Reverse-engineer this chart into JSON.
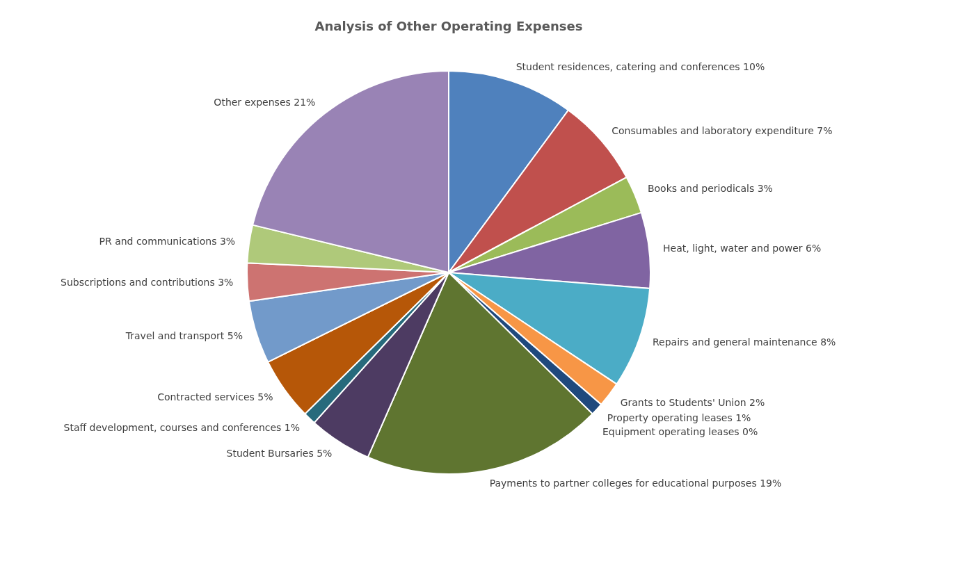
{
  "chart_data": {
    "type": "pie",
    "title": "Analysis of Other Operating Expenses",
    "categories": [
      "Student residences, catering and conferences",
      "Consumables and laboratory expenditure",
      "Books and periodicals",
      "Heat, light, water and power",
      "Repairs and general maintenance",
      "Grants to Students' Union",
      "Property operating leases",
      "Equipment operating leases",
      "Payments to partner colleges for educational purposes",
      "Student Bursaries",
      "Staff development, courses and conferences",
      "Contracted services",
      "Travel and transport",
      "Subscriptions and contributions",
      "PR and communications",
      "Other expenses"
    ],
    "values": [
      10,
      7,
      3,
      6,
      8,
      2,
      1,
      0,
      19,
      5,
      1,
      5,
      5,
      3,
      3,
      21
    ],
    "value_labels": [
      "10%",
      "7%",
      "3%",
      "6%",
      "8%",
      "2%",
      "1%",
      "0%",
      "19%",
      "5%",
      "1%",
      "5%",
      "5%",
      "3%",
      "3%",
      "21%"
    ],
    "colors": [
      "#4f81bd",
      "#c0504d",
      "#9bbb59",
      "#8064a2",
      "#4bacc6",
      "#f79646",
      "#1f497d",
      "#7f2a27",
      "#5f7530",
      "#4d3b62",
      "#276a7c",
      "#b65708",
      "#729aca",
      "#cd7371",
      "#afc97a",
      "#9983b5"
    ],
    "legend": false
  }
}
